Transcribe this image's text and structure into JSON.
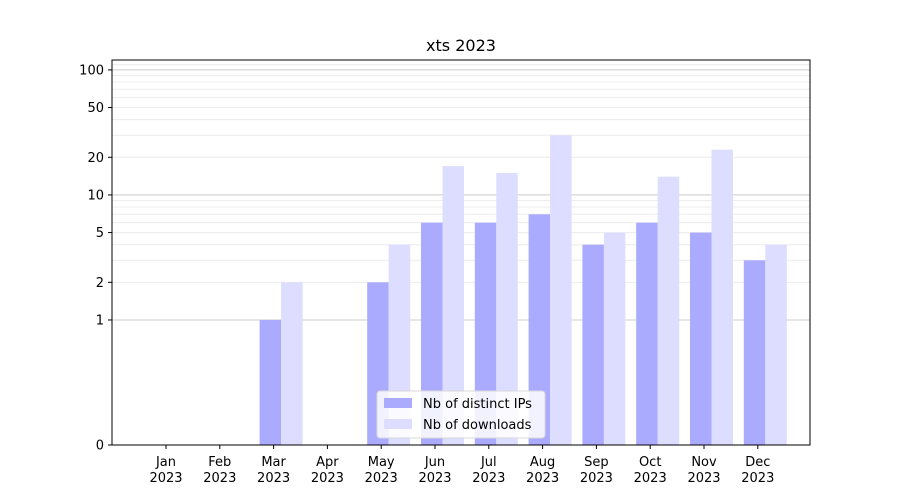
{
  "chart_data": {
    "type": "bar",
    "title": "xts 2023",
    "xlabel": "",
    "ylabel": "",
    "y_scale": "symlog",
    "ylim": [
      0,
      120
    ],
    "y_ticks": [
      0,
      1,
      2,
      5,
      10,
      20,
      50,
      100
    ],
    "grid": true,
    "legend_position": "bottom-center",
    "categories": [
      [
        "Jan",
        "2023"
      ],
      [
        "Feb",
        "2023"
      ],
      [
        "Mar",
        "2023"
      ],
      [
        "Apr",
        "2023"
      ],
      [
        "May",
        "2023"
      ],
      [
        "Jun",
        "2023"
      ],
      [
        "Jul",
        "2023"
      ],
      [
        "Aug",
        "2023"
      ],
      [
        "Sep",
        "2023"
      ],
      [
        "Oct",
        "2023"
      ],
      [
        "Nov",
        "2023"
      ],
      [
        "Dec",
        "2023"
      ]
    ],
    "series": [
      {
        "name": "Nb of distinct IPs",
        "color": "#aaaaff",
        "values": [
          0,
          0,
          1,
          0,
          2,
          6,
          6,
          7,
          4,
          6,
          5,
          3
        ]
      },
      {
        "name": "Nb of downloads",
        "color": "#ddddff",
        "values": [
          0,
          0,
          2,
          0,
          4,
          17,
          15,
          30,
          5,
          14,
          23,
          4
        ]
      }
    ]
  }
}
